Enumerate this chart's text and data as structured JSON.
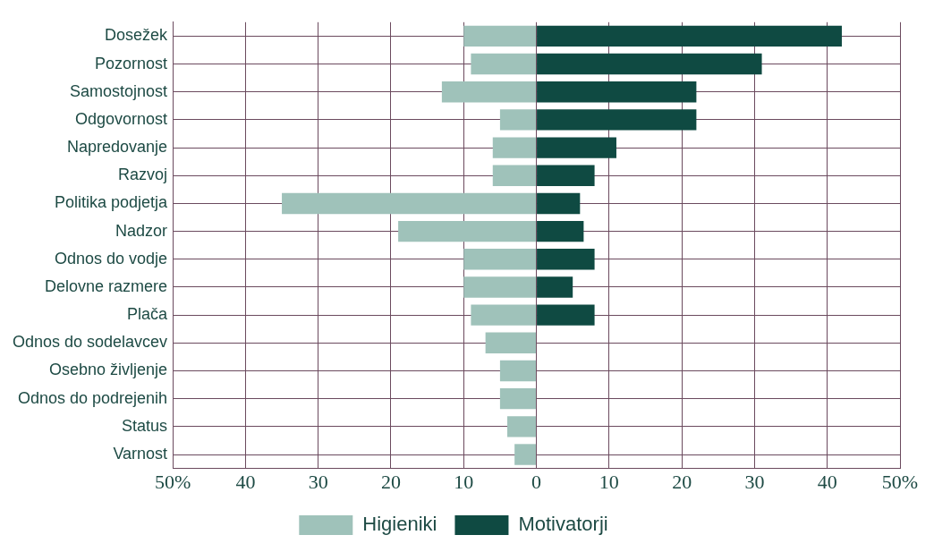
{
  "chart_data": {
    "type": "bar",
    "orientation": "horizontal",
    "stacked": true,
    "categories": [
      "Dosežek",
      "Pozornost",
      "Samostojnost",
      "Odgovornost",
      "Napredovanje",
      "Razvoj",
      "Politika podjetja",
      "Nadzor",
      "Odnos do vodje",
      "Delovne razmere",
      "Plača",
      "Odnos do sodelavcev",
      "Osebno življenje",
      "Odnos do podrejenih",
      "Status",
      "Varnost"
    ],
    "series": [
      {
        "name": "Higieniki",
        "color": "#9fc2ba",
        "values": [
          -10,
          -9,
          -13,
          -5,
          -6,
          -6,
          -35,
          -19,
          -10,
          -10,
          -9,
          -7,
          -5,
          -5,
          -4,
          -3
        ]
      },
      {
        "name": "Motivatorji",
        "color": "#0f4a42",
        "values": [
          42,
          31,
          22,
          22,
          11,
          8,
          6,
          6.5,
          8,
          5,
          8,
          0,
          0,
          0,
          0,
          0
        ]
      }
    ],
    "xlim": [
      -50,
      50
    ],
    "xticks": [
      {
        "value": -50,
        "label": "50%"
      },
      {
        "value": -40,
        "label": "40"
      },
      {
        "value": -30,
        "label": "30"
      },
      {
        "value": -20,
        "label": "20"
      },
      {
        "value": -10,
        "label": "10"
      },
      0,
      10,
      20,
      30,
      40,
      {
        "value": 50,
        "label": "50%"
      }
    ],
    "grid": true,
    "legend": "bottom"
  }
}
